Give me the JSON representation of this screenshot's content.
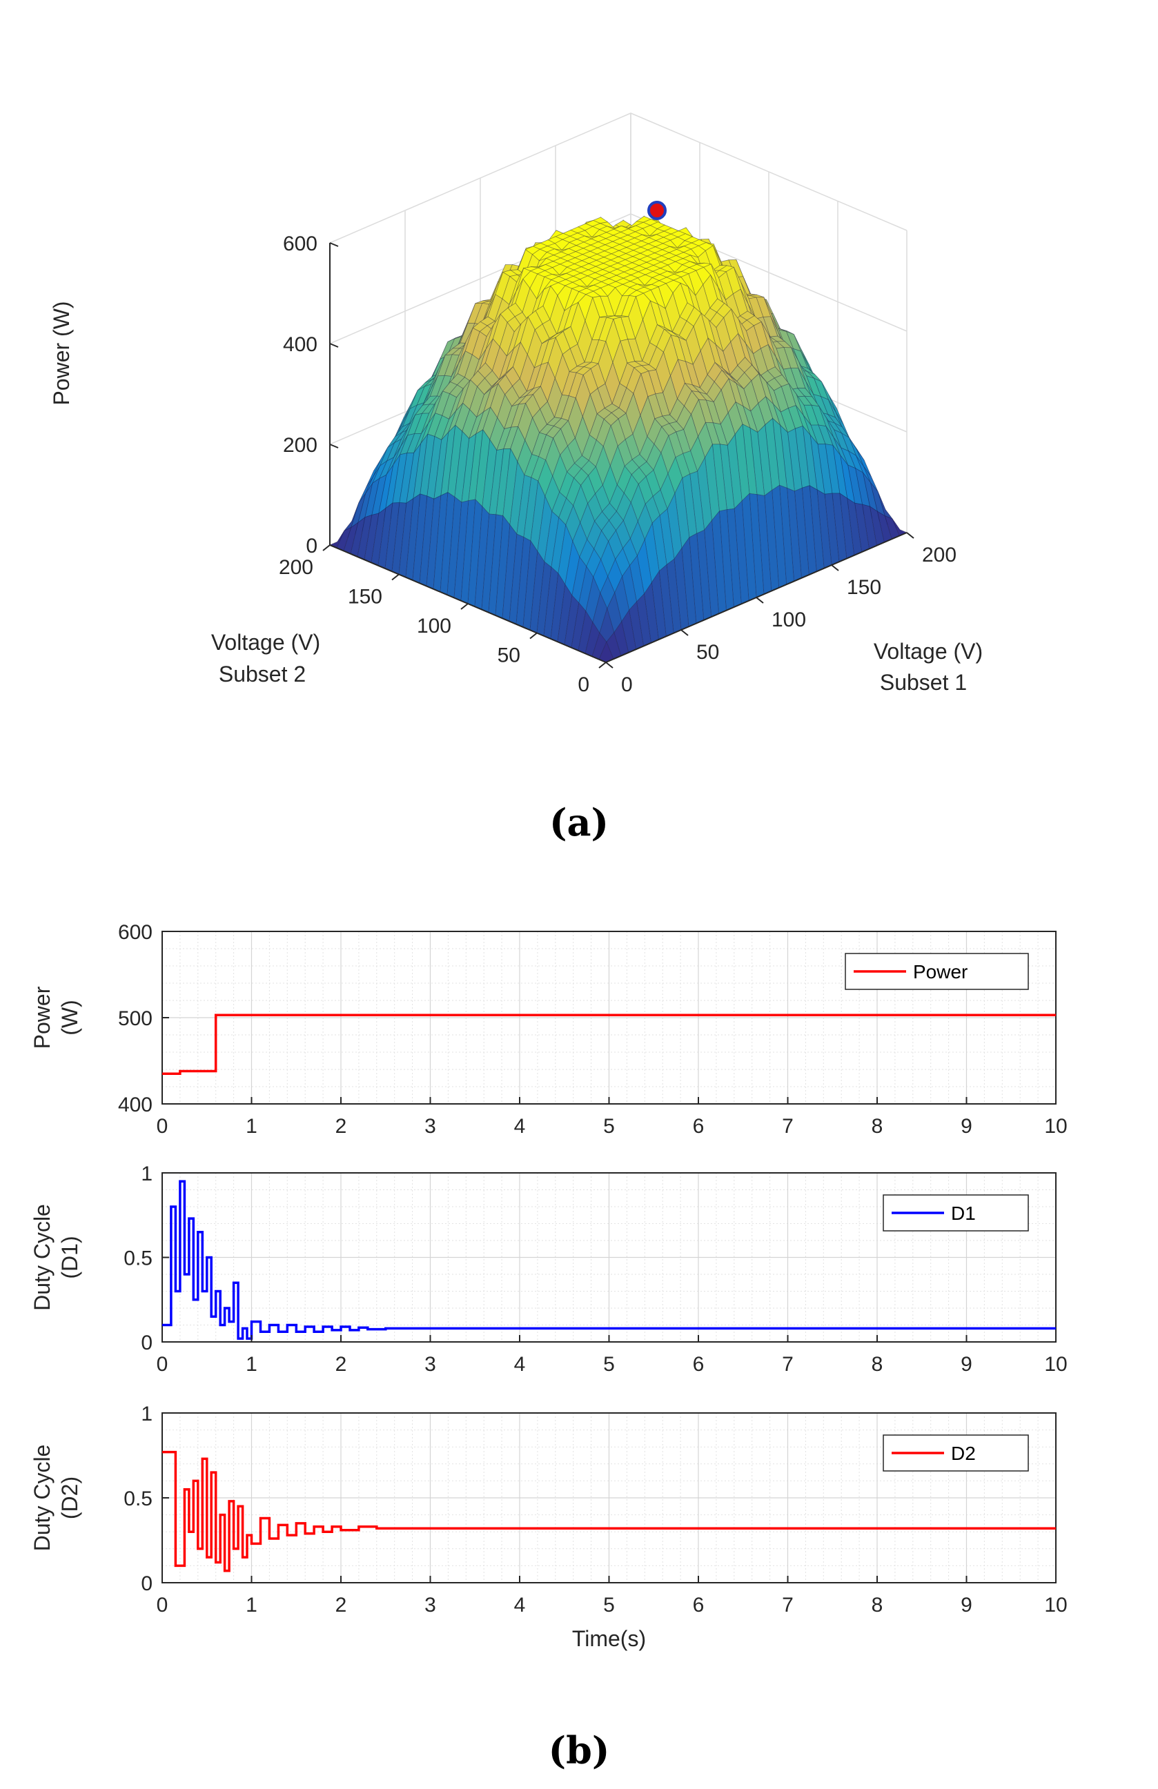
{
  "panels": {
    "a": "(a)",
    "b": "(b)"
  },
  "chart_data": [
    {
      "type": "surface",
      "panel": "a",
      "zlabel": "Power (W)",
      "xlabel": [
        "Voltage (V)",
        "Subset 1"
      ],
      "ylabel": [
        "Voltage (V)",
        "Subset 2"
      ],
      "xlim": [
        0,
        200
      ],
      "ylim": [
        0,
        200
      ],
      "zlim": [
        0,
        600
      ],
      "xticks": [
        0,
        50,
        100,
        150,
        200
      ],
      "yticks": [
        0,
        50,
        100,
        150,
        200
      ],
      "zticks": [
        0,
        200,
        400,
        600
      ],
      "grid": true,
      "colormap": "parula",
      "max_point": {
        "x": 120,
        "y": 120,
        "z": 560,
        "color": "#e01010",
        "edge": "#1f3fbf"
      }
    },
    {
      "type": "line",
      "panel": "b",
      "ylabel": [
        "Power",
        "(W)"
      ],
      "xlim": [
        0,
        10
      ],
      "ylim": [
        400,
        600
      ],
      "xticks": [
        0,
        1,
        2,
        3,
        4,
        5,
        6,
        7,
        8,
        9,
        10
      ],
      "yticks": [
        400,
        500,
        600
      ],
      "legend": "top-right",
      "grid": true,
      "series": [
        {
          "name": "Power",
          "color": "#ff0000",
          "x": [
            0,
            0.2,
            0.2,
            0.6,
            0.6,
            10
          ],
          "y": [
            435,
            435,
            438,
            438,
            503,
            503
          ]
        }
      ]
    },
    {
      "type": "line",
      "panel": "b",
      "ylabel": [
        "Duty Cycle",
        "(D1)"
      ],
      "xlim": [
        0,
        10
      ],
      "ylim": [
        0,
        1
      ],
      "xticks": [
        0,
        1,
        2,
        3,
        4,
        5,
        6,
        7,
        8,
        9,
        10
      ],
      "yticks": [
        0,
        0.5,
        1
      ],
      "legend": "top-right",
      "grid": true,
      "series": [
        {
          "name": "D1",
          "color": "#0000ff",
          "x": [
            0,
            0.1,
            0.1,
            0.15,
            0.15,
            0.2,
            0.2,
            0.25,
            0.25,
            0.3,
            0.3,
            0.35,
            0.35,
            0.4,
            0.4,
            0.45,
            0.45,
            0.5,
            0.5,
            0.55,
            0.55,
            0.6,
            0.6,
            0.65,
            0.65,
            0.7,
            0.7,
            0.75,
            0.75,
            0.8,
            0.8,
            0.85,
            0.85,
            0.9,
            0.9,
            0.95,
            0.95,
            1.0,
            1.0,
            1.1,
            1.1,
            1.2,
            1.2,
            1.3,
            1.3,
            1.4,
            1.4,
            1.5,
            1.5,
            1.6,
            1.6,
            1.7,
            1.7,
            1.8,
            1.8,
            1.9,
            1.9,
            2.0,
            2.0,
            2.1,
            2.1,
            2.2,
            2.2,
            2.3,
            2.3,
            2.5,
            2.5,
            10
          ],
          "y": [
            0.1,
            0.1,
            0.8,
            0.8,
            0.3,
            0.3,
            0.95,
            0.95,
            0.4,
            0.4,
            0.73,
            0.73,
            0.25,
            0.25,
            0.65,
            0.65,
            0.3,
            0.3,
            0.5,
            0.5,
            0.15,
            0.15,
            0.3,
            0.3,
            0.1,
            0.1,
            0.2,
            0.2,
            0.12,
            0.12,
            0.35,
            0.35,
            0.02,
            0.02,
            0.08,
            0.08,
            0.02,
            0.02,
            0.12,
            0.12,
            0.06,
            0.06,
            0.1,
            0.1,
            0.06,
            0.06,
            0.1,
            0.1,
            0.06,
            0.06,
            0.09,
            0.09,
            0.06,
            0.06,
            0.09,
            0.09,
            0.07,
            0.07,
            0.09,
            0.09,
            0.07,
            0.07,
            0.085,
            0.085,
            0.075,
            0.075,
            0.08,
            0.08
          ]
        }
      ]
    },
    {
      "type": "line",
      "panel": "b",
      "ylabel": [
        "Duty Cycle",
        "(D2)"
      ],
      "xlabel": "Time(s)",
      "xlim": [
        0,
        10
      ],
      "ylim": [
        0,
        1
      ],
      "xticks": [
        0,
        1,
        2,
        3,
        4,
        5,
        6,
        7,
        8,
        9,
        10
      ],
      "yticks": [
        0,
        0.5,
        1
      ],
      "legend": "top-right",
      "grid": true,
      "series": [
        {
          "name": "D2",
          "color": "#ff0000",
          "x": [
            0,
            0.15,
            0.15,
            0.25,
            0.25,
            0.3,
            0.3,
            0.35,
            0.35,
            0.4,
            0.4,
            0.45,
            0.45,
            0.5,
            0.5,
            0.55,
            0.55,
            0.6,
            0.6,
            0.65,
            0.65,
            0.7,
            0.7,
            0.75,
            0.75,
            0.8,
            0.8,
            0.85,
            0.85,
            0.9,
            0.9,
            0.95,
            0.95,
            1.0,
            1.0,
            1.1,
            1.1,
            1.2,
            1.2,
            1.3,
            1.3,
            1.4,
            1.4,
            1.5,
            1.5,
            1.6,
            1.6,
            1.7,
            1.7,
            1.8,
            1.8,
            1.9,
            1.9,
            2.0,
            2.0,
            2.2,
            2.2,
            2.4,
            2.4,
            10
          ],
          "y": [
            0.77,
            0.77,
            0.1,
            0.1,
            0.55,
            0.55,
            0.3,
            0.3,
            0.6,
            0.6,
            0.2,
            0.2,
            0.73,
            0.73,
            0.15,
            0.15,
            0.65,
            0.65,
            0.12,
            0.12,
            0.4,
            0.4,
            0.07,
            0.07,
            0.48,
            0.48,
            0.2,
            0.2,
            0.45,
            0.45,
            0.15,
            0.15,
            0.28,
            0.28,
            0.23,
            0.23,
            0.38,
            0.38,
            0.26,
            0.26,
            0.34,
            0.34,
            0.28,
            0.28,
            0.35,
            0.35,
            0.29,
            0.29,
            0.33,
            0.33,
            0.3,
            0.3,
            0.33,
            0.33,
            0.31,
            0.31,
            0.33,
            0.33,
            0.32,
            0.32
          ]
        }
      ]
    }
  ]
}
